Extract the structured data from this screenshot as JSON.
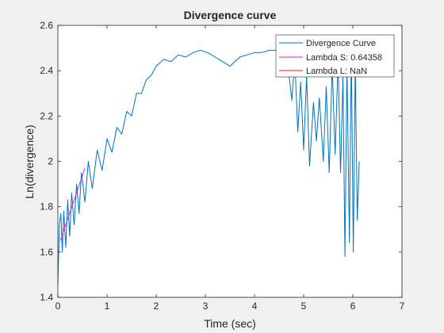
{
  "chart_data": {
    "type": "line",
    "title": "Divergence curve",
    "xlabel": "Time (sec)",
    "ylabel": "Ln(divergence)",
    "xlim": [
      0,
      7
    ],
    "ylim": [
      1.4,
      2.6
    ],
    "xticks": [
      "0",
      "1",
      "2",
      "3",
      "4",
      "5",
      "6",
      "7"
    ],
    "yticks": [
      "1.4",
      "1.6",
      "1.8",
      "2",
      "2.2",
      "2.4",
      "2.6"
    ],
    "grid": false,
    "legend_position": "top-right",
    "series": [
      {
        "name": "Divergence Curve",
        "color": "#0072bd",
        "x": [
          0.0,
          0.03,
          0.06,
          0.09,
          0.12,
          0.16,
          0.2,
          0.24,
          0.28,
          0.33,
          0.38,
          0.43,
          0.48,
          0.55,
          0.62,
          0.7,
          0.8,
          0.9,
          1.0,
          1.1,
          1.2,
          1.3,
          1.4,
          1.5,
          1.6,
          1.7,
          1.8,
          1.9,
          2.0,
          2.15,
          2.3,
          2.45,
          2.6,
          2.75,
          2.9,
          3.05,
          3.2,
          3.35,
          3.5,
          3.6,
          3.7,
          3.85,
          4.0,
          4.15,
          4.3,
          4.45,
          4.58,
          4.68,
          4.76,
          4.82,
          4.88,
          4.94,
          5.0,
          5.06,
          5.12,
          5.2,
          5.26,
          5.32,
          5.4,
          5.46,
          5.52,
          5.58,
          5.64,
          5.7,
          5.75,
          5.8,
          5.84,
          5.88,
          5.93,
          5.97,
          6.01,
          6.05,
          6.09,
          6.13
        ],
        "y": [
          1.46,
          1.72,
          1.77,
          1.6,
          1.78,
          1.62,
          1.83,
          1.67,
          1.86,
          1.72,
          1.9,
          1.77,
          1.95,
          1.82,
          2.0,
          1.88,
          2.05,
          1.96,
          2.1,
          2.04,
          2.15,
          2.12,
          2.22,
          2.2,
          2.3,
          2.3,
          2.36,
          2.38,
          2.42,
          2.45,
          2.44,
          2.47,
          2.46,
          2.48,
          2.49,
          2.48,
          2.46,
          2.44,
          2.42,
          2.44,
          2.46,
          2.47,
          2.48,
          2.48,
          2.49,
          2.49,
          2.48,
          2.42,
          2.27,
          2.45,
          2.13,
          2.35,
          2.05,
          2.38,
          1.98,
          2.26,
          2.09,
          2.28,
          2.0,
          2.33,
          1.95,
          2.42,
          2.03,
          2.45,
          1.95,
          2.37,
          1.58,
          2.43,
          1.64,
          2.49,
          1.6,
          2.44,
          1.74,
          2.0
        ]
      },
      {
        "name": "Lambda S: 0.64358",
        "color": "#d926c9",
        "x": [
          0.05,
          0.55
        ],
        "y": [
          1.65,
          1.97
        ]
      },
      {
        "name": "Lambda L: NaN",
        "color": "#c41f2a",
        "x": [],
        "y": []
      }
    ]
  }
}
